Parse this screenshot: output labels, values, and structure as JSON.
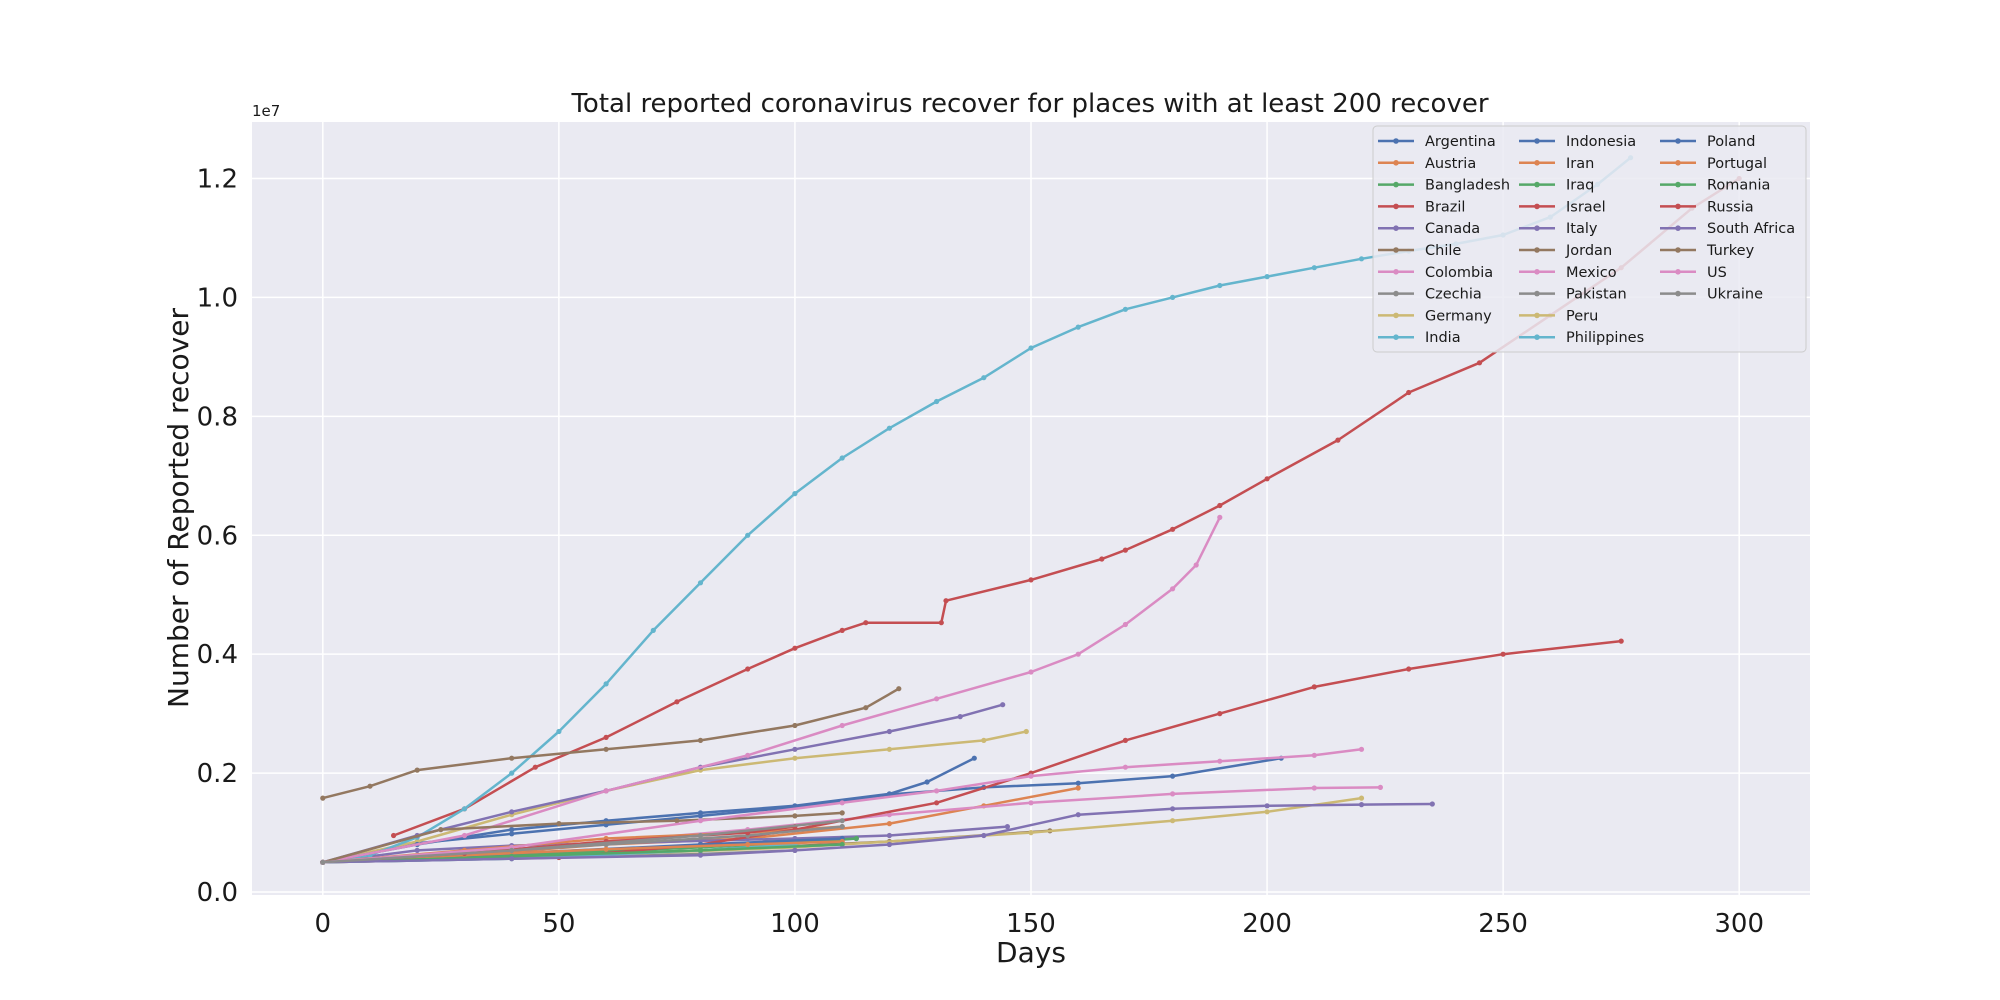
{
  "chart_data": {
    "type": "line",
    "title": "Total reported coronavirus recover for places with at least 200 recover",
    "xlabel": "Days",
    "ylabel": "Number of Reported recover",
    "y_scale_label": "1e7",
    "xlim": [
      -15,
      315
    ],
    "ylim": [
      -50000,
      12950000
    ],
    "x_ticks": [
      0,
      50,
      100,
      150,
      200,
      250,
      300
    ],
    "y_ticks": [
      0,
      2000000,
      4000000,
      6000000,
      8000000,
      10000000,
      12000000
    ],
    "y_tick_labels": [
      "0.0",
      "0.2",
      "0.4",
      "0.6",
      "0.8",
      "1.0",
      "1.2"
    ],
    "grid": true,
    "legend_position": "top-right",
    "series": [
      {
        "name": "Argentina",
        "color": "#4c72b0",
        "points": [
          [
            0,
            500000
          ],
          [
            20,
            820000
          ],
          [
            40,
            980000
          ],
          [
            60,
            1130000
          ],
          [
            80,
            1280000
          ],
          [
            100,
            1430000
          ],
          [
            120,
            1640000
          ],
          [
            140,
            1760000
          ],
          [
            160,
            1830000
          ],
          [
            180,
            1950000
          ],
          [
            203,
            2250000
          ]
        ]
      },
      {
        "name": "Austria",
        "color": "#dd8452",
        "points": [
          [
            0,
            500000
          ],
          [
            30,
            620000
          ],
          [
            60,
            800000
          ],
          [
            90,
            900000
          ],
          [
            120,
            1150000
          ],
          [
            140,
            1450000
          ],
          [
            160,
            1750000
          ]
        ]
      },
      {
        "name": "Bangladesh",
        "color": "#55a868",
        "points": [
          [
            0,
            500000
          ],
          [
            40,
            600000
          ],
          [
            80,
            700000
          ],
          [
            113,
            900000
          ]
        ]
      },
      {
        "name": "Brazil",
        "color": "#c44e52",
        "points": [
          [
            15,
            950000
          ],
          [
            30,
            1400000
          ],
          [
            45,
            2100000
          ],
          [
            60,
            2600000
          ],
          [
            75,
            3200000
          ],
          [
            90,
            3750000
          ],
          [
            100,
            4100000
          ],
          [
            110,
            4400000
          ],
          [
            115,
            4530000
          ],
          [
            131,
            4530000
          ],
          [
            132,
            4900000
          ],
          [
            150,
            5250000
          ],
          [
            165,
            5600000
          ],
          [
            170,
            5750000
          ],
          [
            180,
            6100000
          ],
          [
            190,
            6500000
          ],
          [
            200,
            6950000
          ],
          [
            215,
            7600000
          ],
          [
            230,
            8400000
          ],
          [
            245,
            8900000
          ],
          [
            260,
            9700000
          ],
          [
            275,
            10500000
          ],
          [
            290,
            11500000
          ],
          [
            300,
            12000000
          ]
        ]
      },
      {
        "name": "Canada",
        "color": "#8172b2",
        "points": [
          [
            0,
            500000
          ],
          [
            20,
            700000
          ],
          [
            40,
            780000
          ],
          [
            60,
            820000
          ],
          [
            80,
            860000
          ],
          [
            100,
            900000
          ],
          [
            120,
            950000
          ],
          [
            145,
            1100000
          ]
        ]
      },
      {
        "name": "Chile",
        "color": "#937860",
        "points": [
          [
            0,
            500000
          ],
          [
            40,
            600000
          ],
          [
            80,
            700000
          ],
          [
            120,
            850000
          ],
          [
            154,
            1030000
          ]
        ]
      },
      {
        "name": "Colombia",
        "color": "#da8bc3",
        "points": [
          [
            0,
            500000
          ],
          [
            30,
            650000
          ],
          [
            60,
            850000
          ],
          [
            90,
            1050000
          ],
          [
            120,
            1300000
          ],
          [
            150,
            1500000
          ],
          [
            180,
            1650000
          ],
          [
            210,
            1750000
          ],
          [
            224,
            1760000
          ]
        ]
      },
      {
        "name": "Czechia",
        "color": "#8c8c8c",
        "points": [
          [
            0,
            500000
          ],
          [
            40,
            560000
          ],
          [
            80,
            640000
          ],
          [
            100,
            700000
          ]
        ]
      },
      {
        "name": "Germany",
        "color": "#ccb974",
        "points": [
          [
            0,
            500000
          ],
          [
            20,
            850000
          ],
          [
            40,
            1300000
          ],
          [
            60,
            1700000
          ],
          [
            80,
            2050000
          ],
          [
            100,
            2250000
          ],
          [
            120,
            2400000
          ],
          [
            140,
            2550000
          ],
          [
            149,
            2700000
          ]
        ]
      },
      {
        "name": "India",
        "color": "#64b5cd",
        "points": [
          [
            0,
            500000
          ],
          [
            10,
            620000
          ],
          [
            20,
            920000
          ],
          [
            30,
            1400000
          ],
          [
            40,
            2000000
          ],
          [
            50,
            2700000
          ],
          [
            60,
            3500000
          ],
          [
            70,
            4400000
          ],
          [
            80,
            5200000
          ],
          [
            90,
            6000000
          ],
          [
            100,
            6700000
          ],
          [
            110,
            7300000
          ],
          [
            120,
            7800000
          ],
          [
            130,
            8250000
          ],
          [
            140,
            8650000
          ],
          [
            150,
            9150000
          ],
          [
            160,
            9500000
          ],
          [
            170,
            9800000
          ],
          [
            180,
            10000000
          ],
          [
            190,
            10200000
          ],
          [
            200,
            10350000
          ],
          [
            210,
            10500000
          ],
          [
            220,
            10650000
          ],
          [
            230,
            10780000
          ],
          [
            240,
            10900000
          ],
          [
            250,
            11050000
          ],
          [
            260,
            11350000
          ],
          [
            270,
            11900000
          ],
          [
            277,
            12350000
          ]
        ]
      },
      {
        "name": "Indonesia",
        "color": "#4c72b0",
        "points": [
          [
            0,
            500000
          ],
          [
            20,
            800000
          ],
          [
            40,
            1050000
          ],
          [
            60,
            1200000
          ],
          [
            80,
            1330000
          ],
          [
            100,
            1450000
          ],
          [
            120,
            1650000
          ],
          [
            128,
            1850000
          ],
          [
            138,
            2250000
          ]
        ]
      },
      {
        "name": "Iran",
        "color": "#dd8452",
        "points": [
          [
            0,
            500000
          ],
          [
            30,
            700000
          ],
          [
            60,
            900000
          ],
          [
            90,
            1000000
          ],
          [
            110,
            1100000
          ]
        ]
      },
      {
        "name": "Iraq",
        "color": "#55a868",
        "points": [
          [
            0,
            500000
          ],
          [
            40,
            620000
          ],
          [
            80,
            750000
          ],
          [
            113,
            900000
          ]
        ]
      },
      {
        "name": "Israel",
        "color": "#c44e52",
        "points": [
          [
            0,
            500000
          ],
          [
            50,
            580000
          ],
          [
            80,
            800000
          ],
          [
            100,
            1050000
          ],
          [
            130,
            1500000
          ],
          [
            150,
            2000000
          ],
          [
            170,
            2550000
          ],
          [
            190,
            3000000
          ],
          [
            210,
            3450000
          ],
          [
            230,
            3750000
          ],
          [
            250,
            4000000
          ],
          [
            275,
            4220000
          ]
        ]
      },
      {
        "name": "Italy",
        "color": "#8172b2",
        "points": [
          [
            0,
            500000
          ],
          [
            20,
            950000
          ],
          [
            40,
            1350000
          ],
          [
            60,
            1700000
          ],
          [
            80,
            2100000
          ],
          [
            100,
            2400000
          ],
          [
            120,
            2700000
          ],
          [
            135,
            2950000
          ],
          [
            144,
            3150000
          ]
        ]
      },
      {
        "name": "Jordan",
        "color": "#937860",
        "points": [
          [
            0,
            1580000
          ],
          [
            10,
            1780000
          ],
          [
            20,
            2050000
          ],
          [
            40,
            2250000
          ],
          [
            60,
            2400000
          ],
          [
            80,
            2550000
          ],
          [
            100,
            2800000
          ],
          [
            115,
            3100000
          ],
          [
            122,
            3420000
          ]
        ]
      },
      {
        "name": "Mexico",
        "color": "#da8bc3",
        "points": [
          [
            0,
            500000
          ],
          [
            30,
            950000
          ],
          [
            60,
            1700000
          ],
          [
            90,
            2300000
          ],
          [
            110,
            2800000
          ],
          [
            130,
            3250000
          ],
          [
            150,
            3700000
          ],
          [
            160,
            4000000
          ],
          [
            170,
            4500000
          ],
          [
            180,
            5100000
          ],
          [
            185,
            5500000
          ],
          [
            190,
            6300000
          ]
        ]
      },
      {
        "name": "Pakistan",
        "color": "#8c8c8c",
        "points": [
          [
            0,
            500000
          ],
          [
            30,
            650000
          ],
          [
            60,
            800000
          ],
          [
            90,
            950000
          ],
          [
            110,
            1100000
          ]
        ]
      },
      {
        "name": "Peru",
        "color": "#ccb974",
        "points": [
          [
            0,
            500000
          ],
          [
            50,
            600000
          ],
          [
            100,
            750000
          ],
          [
            150,
            1000000
          ],
          [
            180,
            1200000
          ],
          [
            200,
            1350000
          ],
          [
            220,
            1580000
          ]
        ]
      },
      {
        "name": "Philippines",
        "color": "#64b5cd",
        "points": [
          [
            0,
            500000
          ],
          [
            40,
            560000
          ],
          [
            80,
            700000
          ],
          [
            100,
            800000
          ]
        ]
      },
      {
        "name": "Poland",
        "color": "#4c72b0",
        "points": [
          [
            0,
            500000
          ],
          [
            40,
            650000
          ],
          [
            80,
            800000
          ],
          [
            110,
            900000
          ]
        ]
      },
      {
        "name": "Portugal",
        "color": "#dd8452",
        "points": [
          [
            0,
            500000
          ],
          [
            30,
            620000
          ],
          [
            60,
            720000
          ],
          [
            90,
            800000
          ],
          [
            110,
            850000
          ]
        ]
      },
      {
        "name": "Romania",
        "color": "#55a868",
        "points": [
          [
            0,
            500000
          ],
          [
            40,
            600000
          ],
          [
            80,
            700000
          ],
          [
            110,
            800000
          ]
        ]
      },
      {
        "name": "Russia",
        "color": "#c44e52",
        "points": [
          [
            0,
            500000
          ],
          [
            30,
            650000
          ],
          [
            60,
            850000
          ],
          [
            90,
            1000000
          ],
          [
            100,
            1100000
          ]
        ]
      },
      {
        "name": "South Africa",
        "color": "#8172b2",
        "points": [
          [
            0,
            500000
          ],
          [
            40,
            560000
          ],
          [
            80,
            620000
          ],
          [
            100,
            700000
          ],
          [
            120,
            800000
          ],
          [
            140,
            950000
          ],
          [
            160,
            1300000
          ],
          [
            180,
            1400000
          ],
          [
            200,
            1450000
          ],
          [
            220,
            1470000
          ],
          [
            235,
            1480000
          ]
        ]
      },
      {
        "name": "Turkey",
        "color": "#937860",
        "points": [
          [
            0,
            500000
          ],
          [
            25,
            1050000
          ],
          [
            50,
            1150000
          ],
          [
            75,
            1200000
          ],
          [
            100,
            1280000
          ],
          [
            110,
            1330000
          ]
        ]
      },
      {
        "name": "US",
        "color": "#da8bc3",
        "points": [
          [
            0,
            500000
          ],
          [
            40,
            750000
          ],
          [
            80,
            1200000
          ],
          [
            110,
            1500000
          ],
          [
            130,
            1700000
          ],
          [
            150,
            1950000
          ],
          [
            170,
            2100000
          ],
          [
            190,
            2200000
          ],
          [
            210,
            2300000
          ],
          [
            220,
            2400000
          ]
        ]
      },
      {
        "name": "Ukraine",
        "color": "#8c8c8c",
        "points": [
          [
            0,
            500000
          ],
          [
            40,
            700000
          ],
          [
            80,
            950000
          ],
          [
            110,
            1200000
          ]
        ]
      }
    ]
  }
}
